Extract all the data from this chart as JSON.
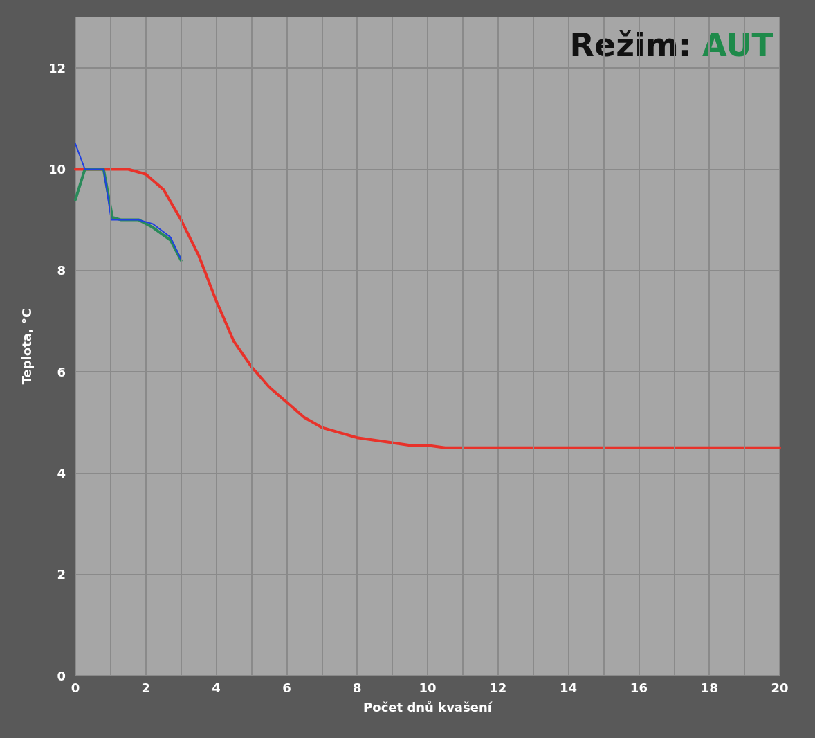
{
  "chart_data": {
    "type": "line",
    "xlabel": "Počet dnů kvašení",
    "ylabel": "Teplota, °C",
    "annotations": [
      "Režim: AUT"
    ],
    "xlim": [
      0,
      20
    ],
    "xticks": [
      0,
      2,
      4,
      6,
      8,
      10,
      12,
      14,
      16,
      18,
      20
    ],
    "ylim": [
      0,
      13
    ],
    "yticks": [
      0,
      2,
      4,
      6,
      8,
      10,
      12
    ],
    "grid": true,
    "marker": "none",
    "line_style": "solid",
    "series": [
      {
        "color": "#e8322a",
        "x": [
          0,
          1.5,
          2,
          2.5,
          3,
          3.5,
          4,
          4.5,
          5,
          5.5,
          6,
          6.5,
          7,
          7.5,
          8,
          9,
          9.5,
          10,
          10.5,
          20
        ],
        "values": [
          10,
          10,
          9.9,
          9.6,
          9.0,
          8.3,
          7.4,
          6.6,
          6.1,
          5.7,
          5.4,
          5.1,
          4.9,
          4.8,
          4.7,
          4.6,
          4.55,
          4.55,
          4.5,
          4.5
        ]
      },
      {
        "color": "#2a8a5a",
        "x": [
          0,
          0.27,
          0.8,
          1.05,
          1.3,
          1.8,
          2.2,
          2.7,
          3.0
        ],
        "values": [
          9.4,
          10,
          10,
          9.05,
          9.0,
          9.0,
          8.85,
          8.6,
          8.2
        ]
      },
      {
        "color": "#2040e0",
        "x": [
          0,
          0.27,
          0.8,
          1.02,
          1.3,
          1.8,
          2.2,
          2.7,
          3.0
        ],
        "values": [
          10.5,
          10,
          10,
          9.0,
          9.0,
          9.0,
          8.92,
          8.66,
          8.22
        ]
      }
    ]
  }
}
